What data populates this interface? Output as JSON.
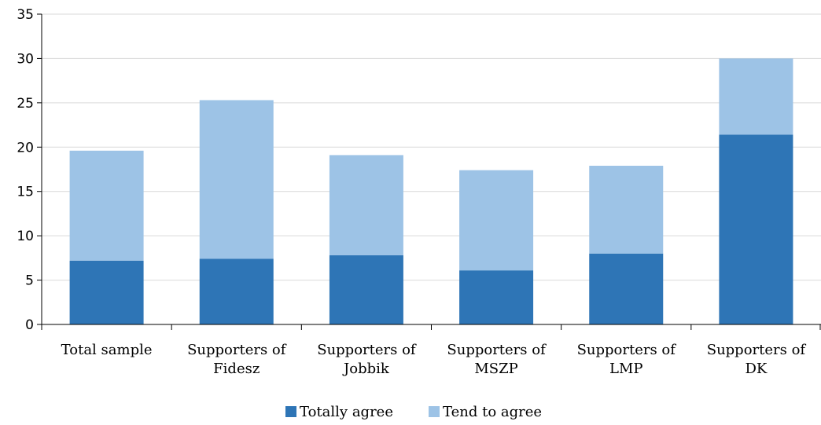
{
  "chart_data": {
    "type": "bar",
    "stacked": true,
    "categories": [
      [
        "Total sample"
      ],
      [
        "Supporters of",
        "Fidesz"
      ],
      [
        "Supporters of",
        "Jobbik"
      ],
      [
        "Supporters of",
        "MSZP"
      ],
      [
        "Supporters of",
        "LMP"
      ],
      [
        "Supporters of",
        "DK"
      ]
    ],
    "series": [
      {
        "name": "Totally agree",
        "color": "#2e75b6",
        "values": [
          7.2,
          7.4,
          7.8,
          6.1,
          8.0,
          21.4
        ]
      },
      {
        "name": "Tend to agree",
        "color": "#9dc3e6",
        "values": [
          12.4,
          17.9,
          11.3,
          11.3,
          9.9,
          8.6
        ]
      }
    ],
    "ylim": [
      0,
      35
    ],
    "yticks": [
      0,
      5,
      10,
      15,
      20,
      25,
      30,
      35
    ],
    "grid": true,
    "legend_position": "bottom"
  }
}
